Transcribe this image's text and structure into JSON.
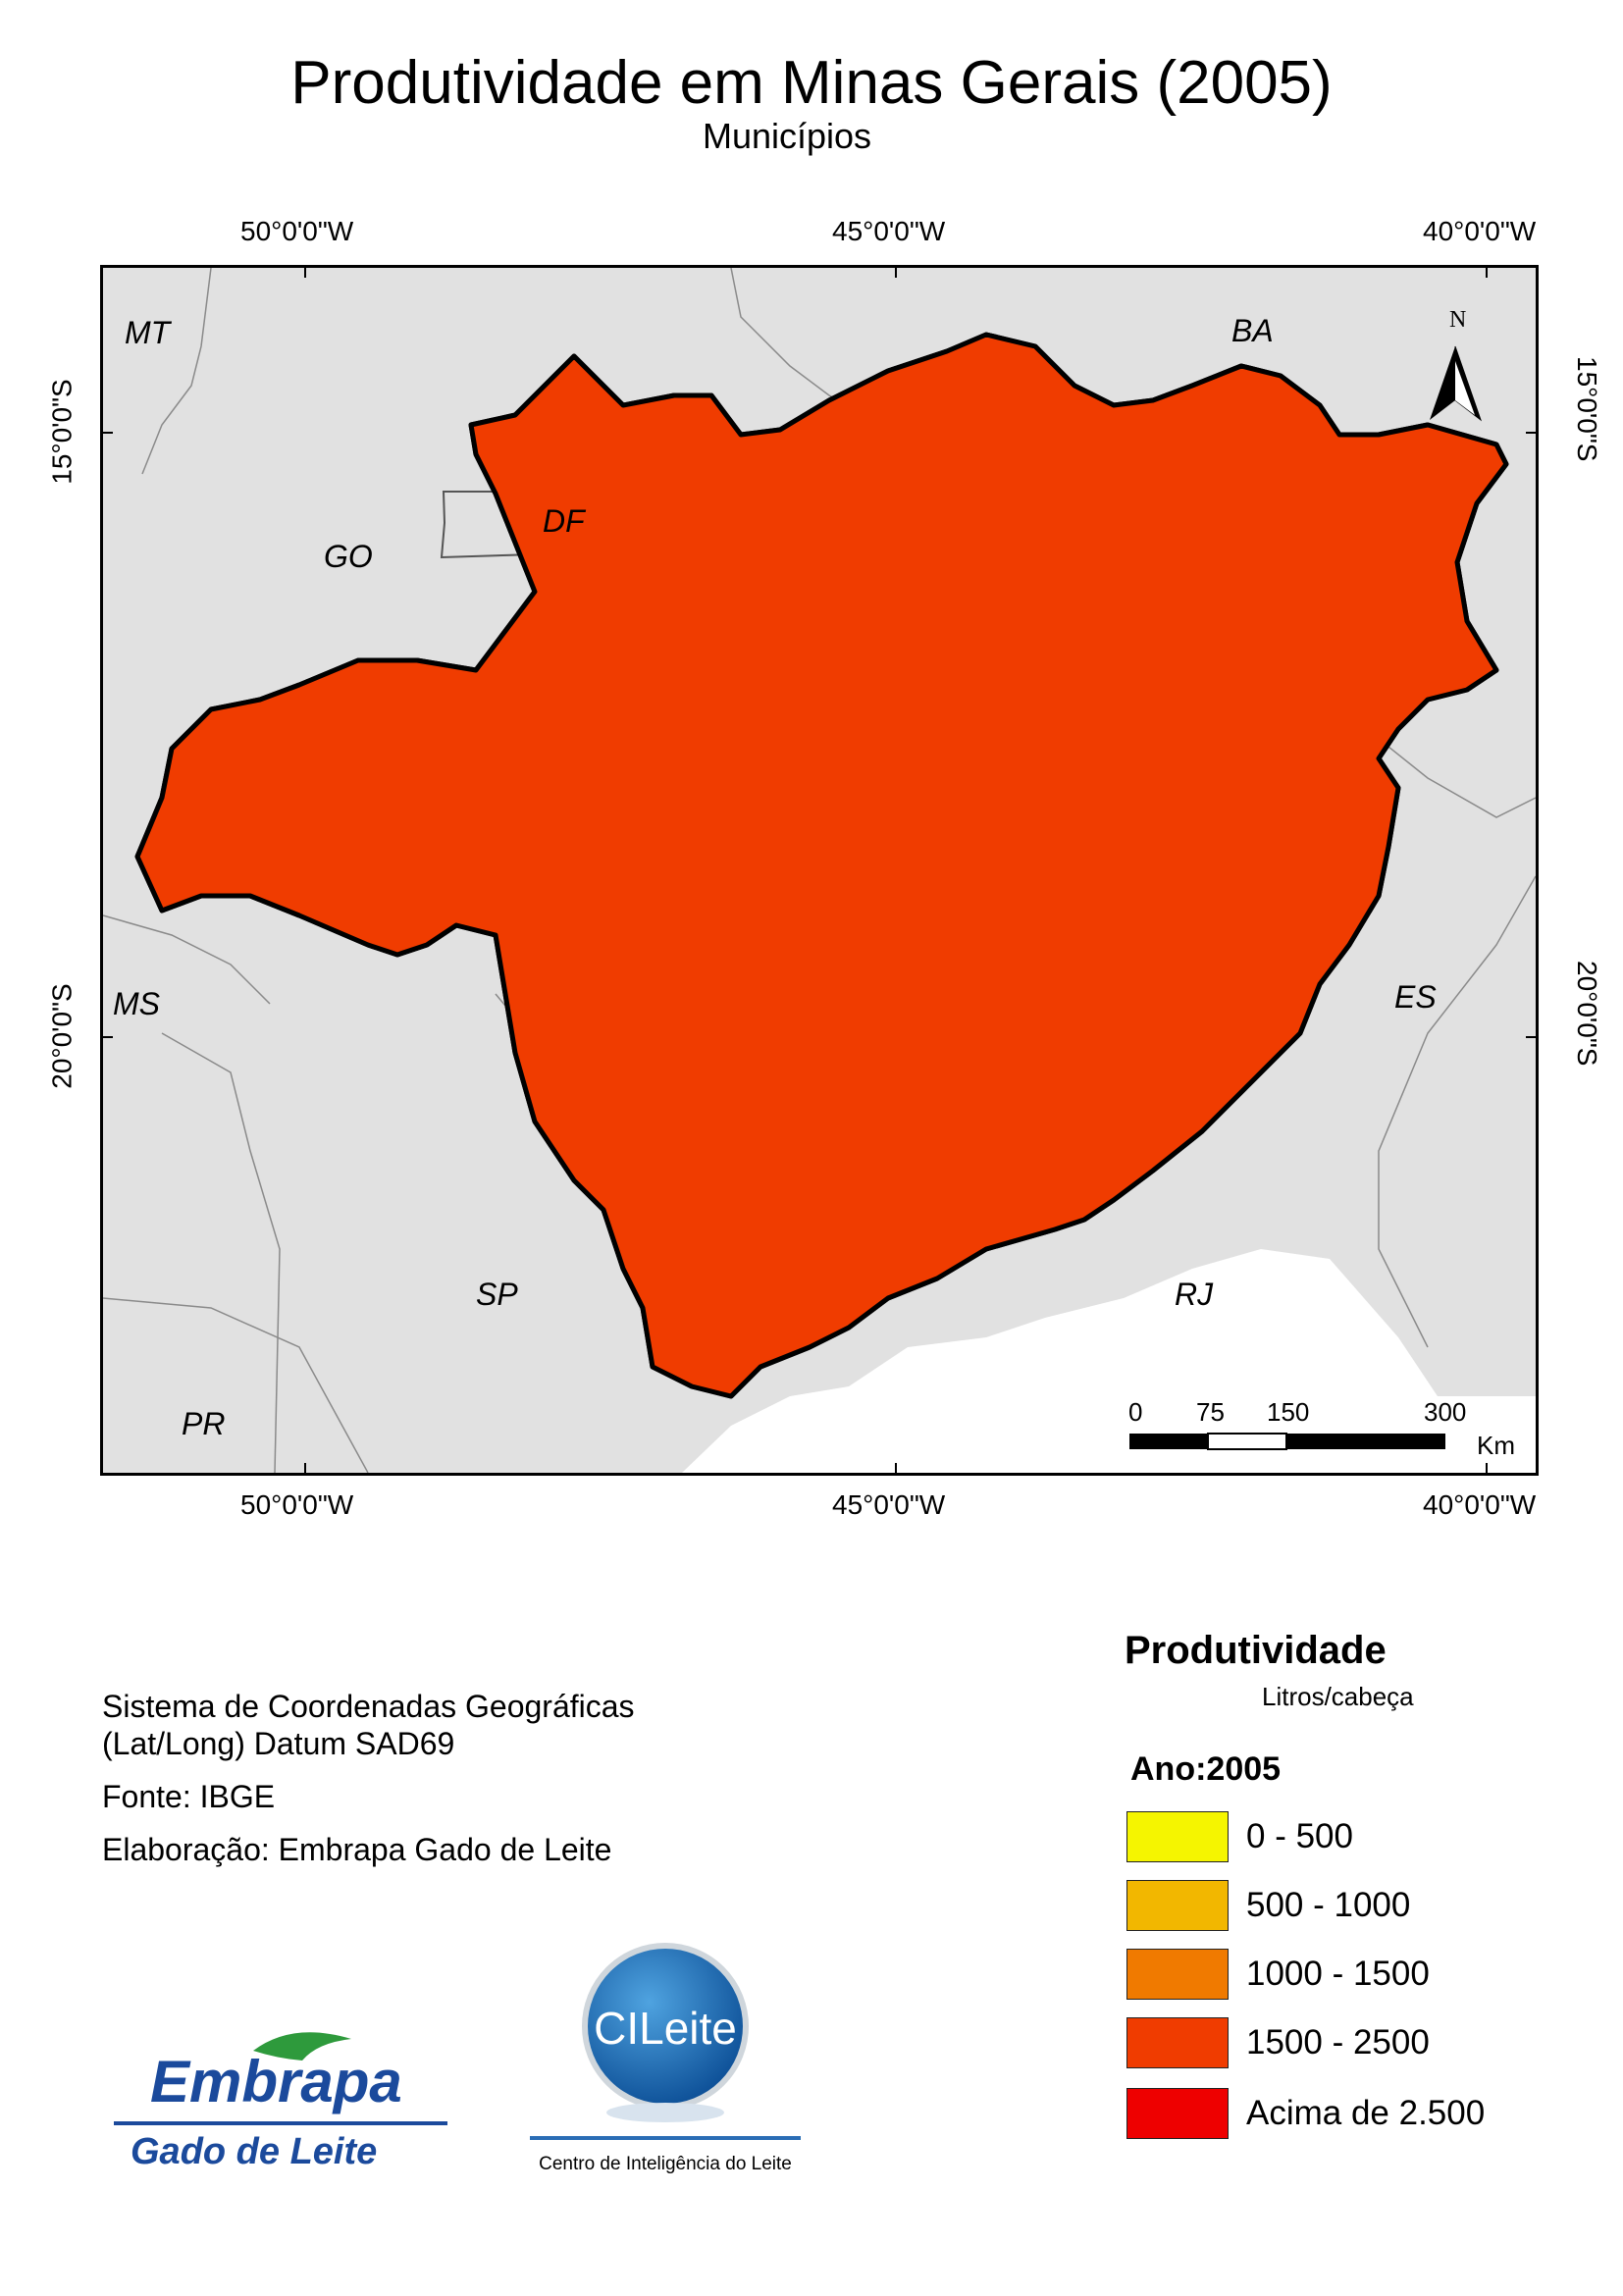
{
  "title": "Produtividade em Minas Gerais (2005)",
  "subtitle": "Municípios",
  "graticule": {
    "lon_labels": [
      "50°0'0\"W",
      "45°0'0\"W",
      "40°0'0\"W"
    ],
    "lat_labels": [
      "15°0'0\"S",
      "20°0'0\"S"
    ]
  },
  "states": [
    "MT",
    "BA",
    "GO",
    "DF",
    "MS",
    "ES",
    "SP",
    "RJ",
    "PR"
  ],
  "north_arrow": "N",
  "scale_bar": {
    "ticks": [
      "0",
      "75",
      "150",
      "300"
    ],
    "unit": "Km"
  },
  "info": {
    "crs_line1": "Sistema de Coordenadas Geográficas",
    "crs_line2": "(Lat/Long) Datum SAD69",
    "source": "Fonte: IBGE",
    "author": "Elaboração: Embrapa Gado de Leite"
  },
  "legend": {
    "title": "Produtividade",
    "unit": "Litros/cabeça",
    "year": "Ano:2005",
    "classes": [
      {
        "label": "0 - 500",
        "color": "#f5f500"
      },
      {
        "label": "500 - 1000",
        "color": "#f2b700"
      },
      {
        "label": "1000 - 1500",
        "color": "#f07a00"
      },
      {
        "label": "1500 - 2500",
        "color": "#f03c00"
      },
      {
        "label": "Acima de 2.500",
        "color": "#ee0000"
      }
    ]
  },
  "logos": {
    "embrapa_name": "Embrapa",
    "embrapa_unit": "Gado de Leite",
    "cileite_name": "CILeite",
    "cileite_caption": "Centro de Inteligência do Leite"
  }
}
